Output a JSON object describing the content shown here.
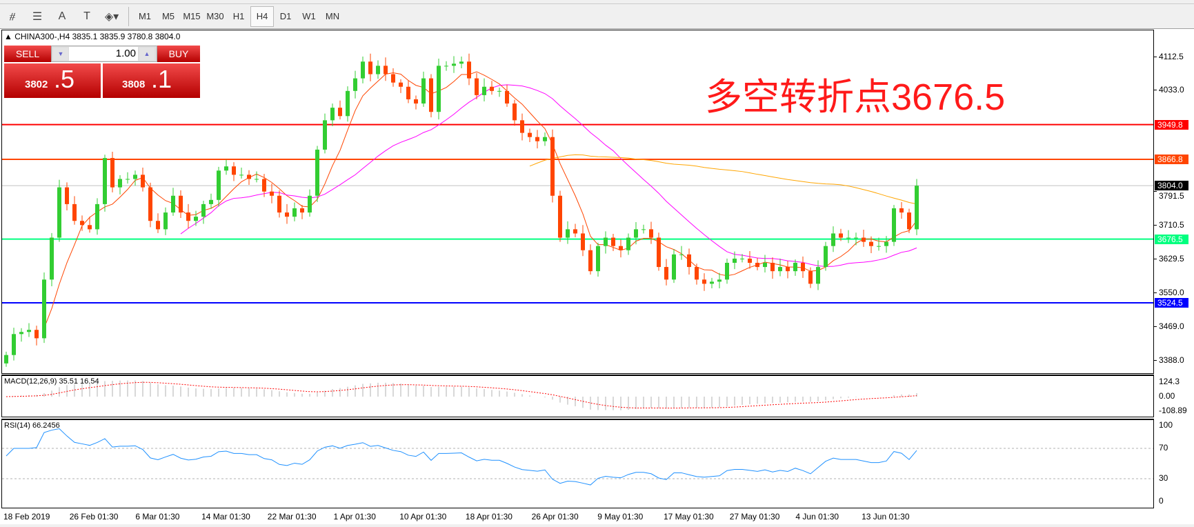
{
  "toolbar": {
    "icons": [
      "line-studies-icon",
      "fibonacci-icon",
      "text-icon",
      "text-label-icon",
      "arrows-icon"
    ],
    "timeframes": [
      "M1",
      "M5",
      "M15",
      "M30",
      "H1",
      "H4",
      "D1",
      "W1",
      "MN"
    ],
    "active_timeframe": "H4"
  },
  "chart": {
    "header": "CHINA300-,H4  3835.1 3835.9 3780.8 3804.0",
    "headline": "多空转折点3676.5",
    "price_axis": [
      "4112.5",
      "4033.0",
      "3791.5",
      "3710.5",
      "3629.5",
      "3550.0",
      "3469.0",
      "3388.0"
    ],
    "levels": [
      {
        "value": "3949.8",
        "color": "#ff0000"
      },
      {
        "value": "3866.8",
        "color": "#ff4500"
      },
      {
        "value": "3804.0",
        "color": "#000000",
        "line": "#c0c0c0"
      },
      {
        "value": "3676.5",
        "color": "#00ff7f"
      },
      {
        "value": "3524.5",
        "color": "#0000ff"
      }
    ],
    "dates": [
      "18 Feb 2019",
      "26 Feb 01:30",
      "6 Mar 01:30",
      "14 Mar 01:30",
      "22 Mar 01:30",
      "1 Apr 01:30",
      "10 Apr 01:30",
      "18 Apr 01:30",
      "26 Apr 01:30",
      "9 May 01:30",
      "17 May 01:30",
      "27 May 01:30",
      "4 Jun 01:30",
      "13 Jun 01:30"
    ],
    "bull_color": "#32cd32",
    "bear_color": "#ff4500"
  },
  "trade": {
    "sell_label": "SELL",
    "buy_label": "BUY",
    "lot": "1.00",
    "sell_big": "3802",
    "sell_small": ".5",
    "buy_big": "3808",
    "buy_small": ".1"
  },
  "macd": {
    "label": "MACD(12,26,9) 35.51 16.54",
    "axis": [
      "124.3",
      "0.00",
      "-108.89"
    ]
  },
  "rsi": {
    "label": "RSI(14) 66.2456",
    "axis": [
      "100",
      "70",
      "30",
      "0"
    ]
  },
  "chart_data": {
    "type": "candlestick",
    "symbol": "CHINA300-",
    "timeframe": "H4",
    "closes": [
      3400,
      3450,
      3455,
      3460,
      3440,
      3580,
      3680,
      3800,
      3760,
      3720,
      3710,
      3700,
      3760,
      3870,
      3800,
      3820,
      3820,
      3830,
      3800,
      3720,
      3700,
      3740,
      3780,
      3740,
      3720,
      3730,
      3760,
      3770,
      3840,
      3850,
      3830,
      3830,
      3820,
      3820,
      3790,
      3780,
      3740,
      3730,
      3750,
      3740,
      3780,
      3890,
      3960,
      3990,
      3970,
      4030,
      4060,
      4100,
      4070,
      4090,
      4070,
      4050,
      4040,
      4010,
      4000,
      4060,
      3980,
      4090,
      4090,
      4095,
      4100,
      4060,
      4020,
      4040,
      4030,
      4030,
      4000,
      3960,
      3930,
      3920,
      3910,
      3920,
      3780,
      3680,
      3700,
      3690,
      3650,
      3600,
      3660,
      3680,
      3660,
      3650,
      3680,
      3700,
      3700,
      3680,
      3610,
      3580,
      3640,
      3640,
      3610,
      3580,
      3570,
      3575,
      3580,
      3620,
      3630,
      3630,
      3620,
      3610,
      3620,
      3600,
      3610,
      3600,
      3620,
      3600,
      3570,
      3610,
      3660,
      3690,
      3680,
      3680,
      3680,
      3670,
      3660,
      3660,
      3670,
      3750,
      3740,
      3700,
      3804
    ],
    "ylim": [
      3360,
      4160
    ]
  }
}
